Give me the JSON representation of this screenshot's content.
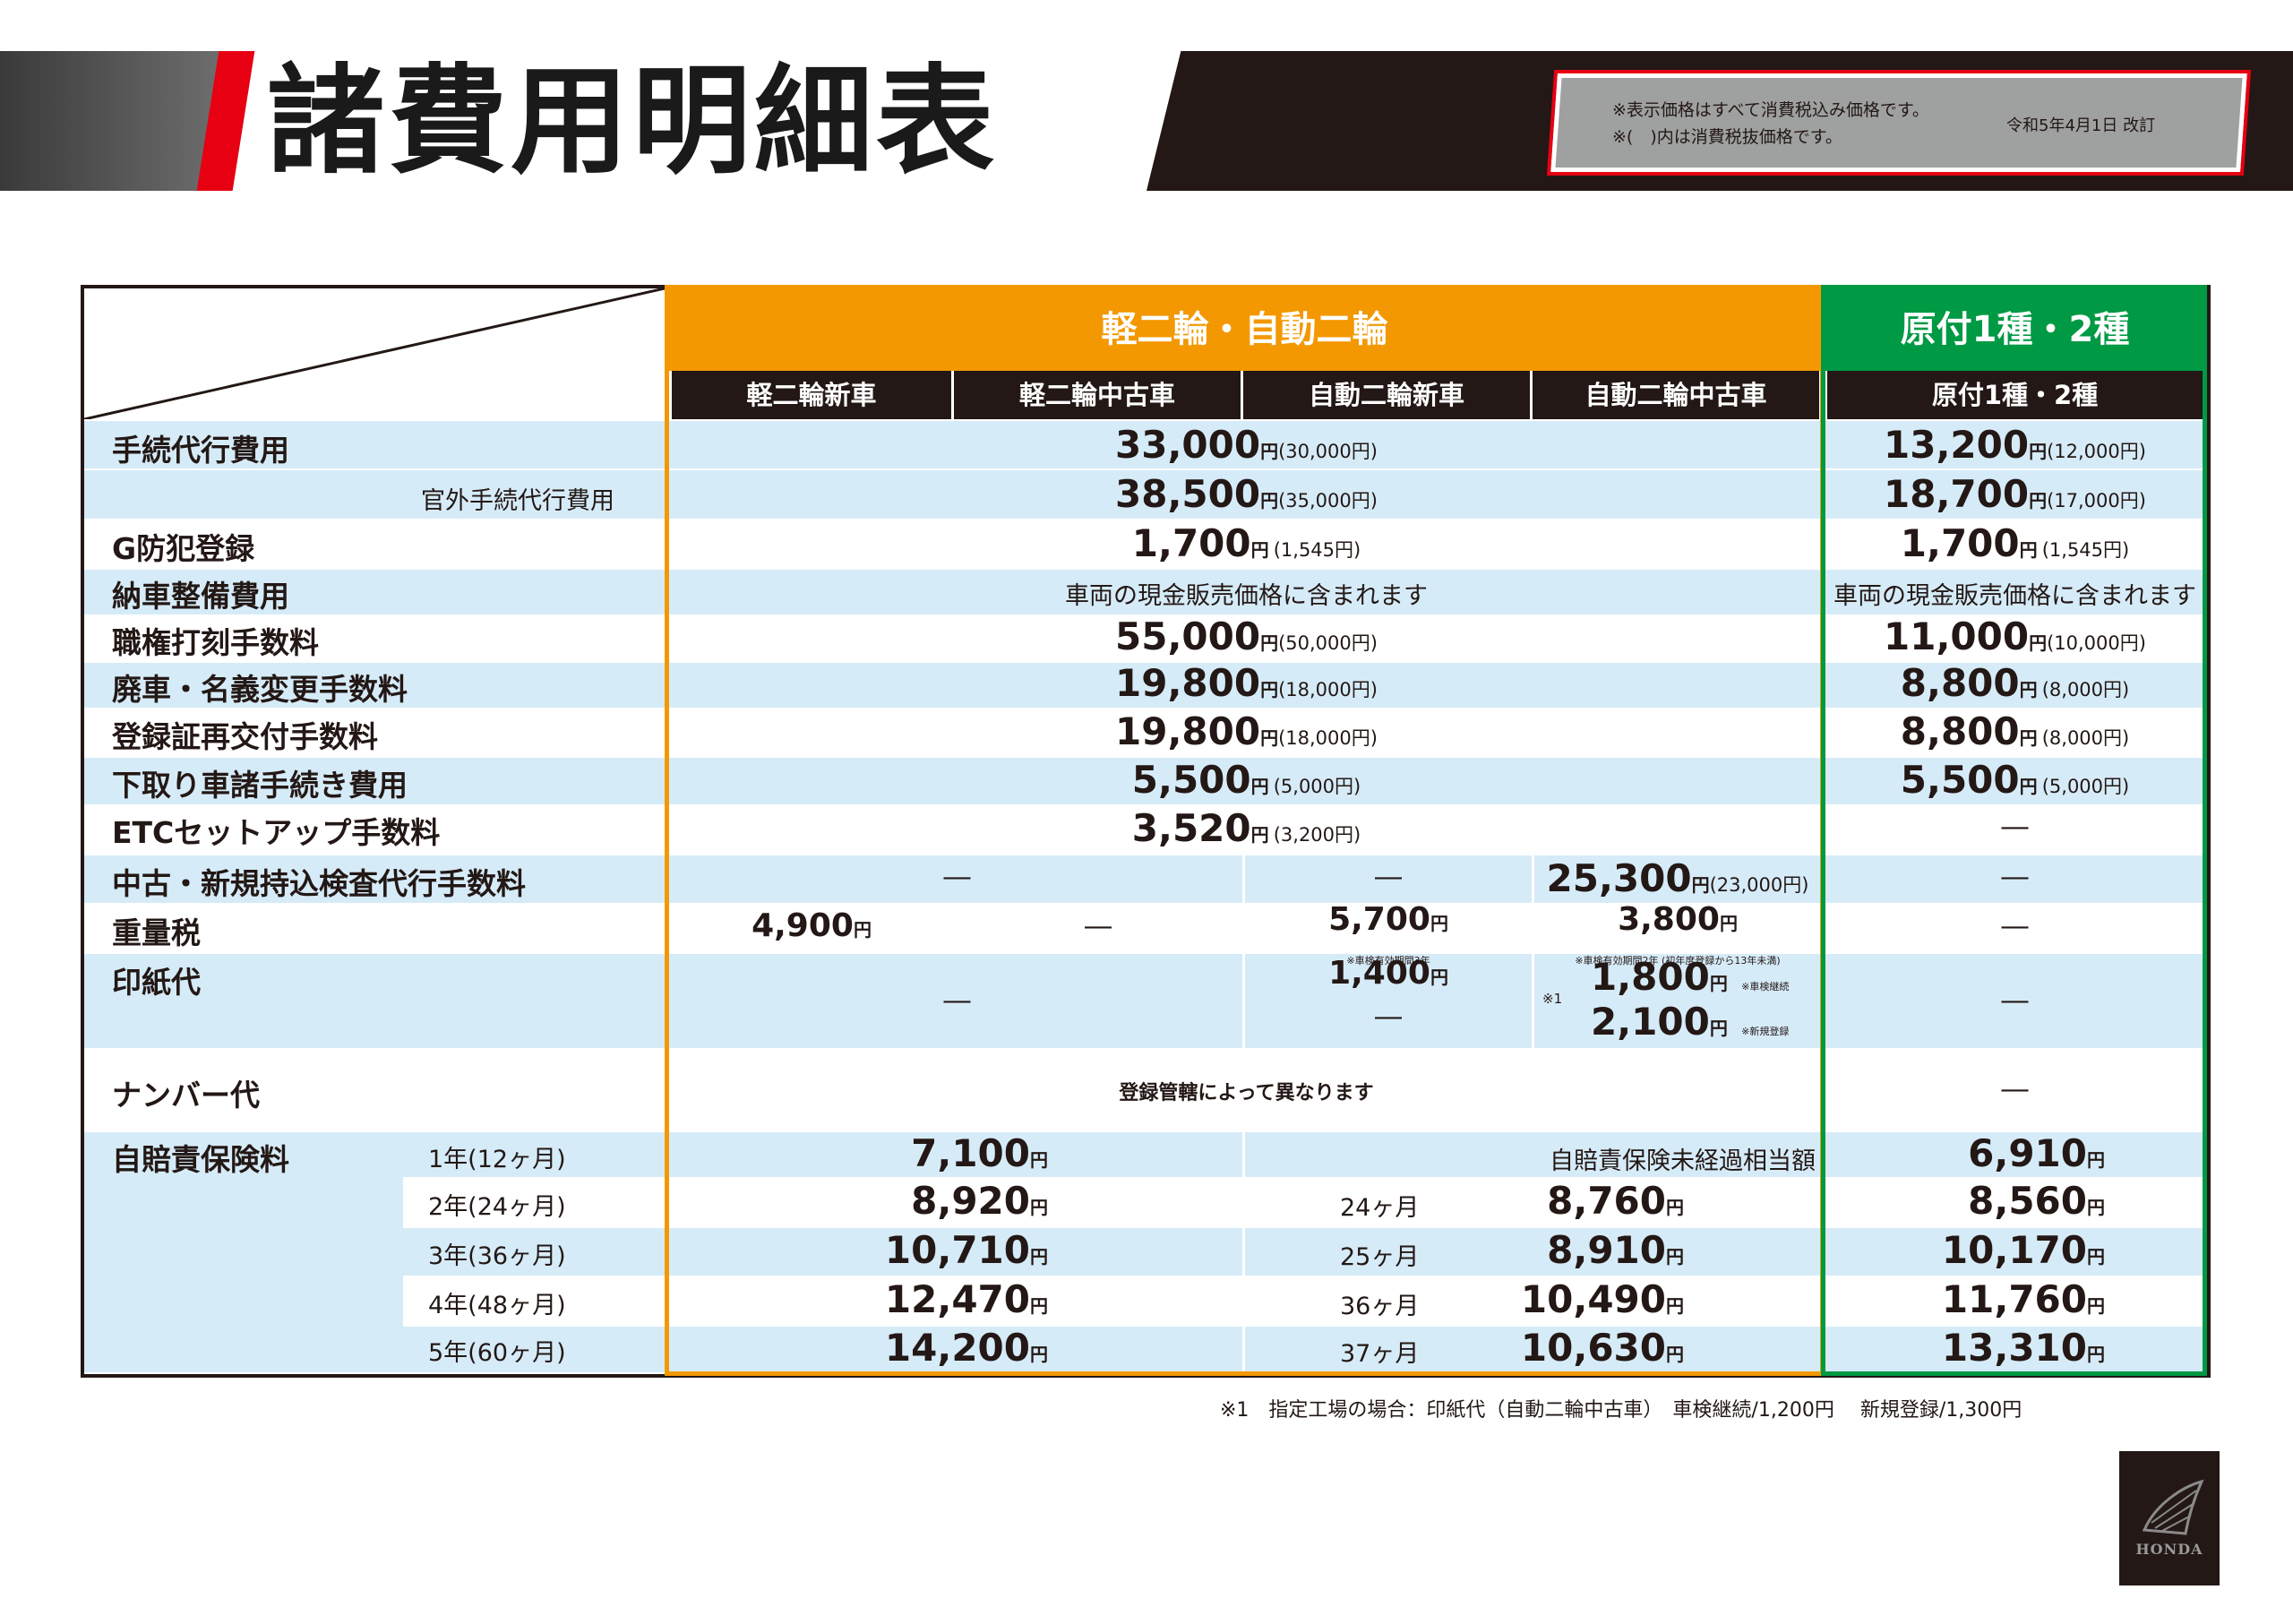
{
  "header": {
    "title": "諸費用明細表",
    "note1": "※表示価格はすべて消費税込み価格です。",
    "note2": "※(　)内は消費税抜価格です。",
    "revision": "令和5年4月1日 改訂"
  },
  "columns": {
    "group_main": "軽二輪・自動二輪",
    "group_moped": "原付1種・2種",
    "sub": [
      "軽二輪新車",
      "軽二輪中古車",
      "自動二輪新車",
      "自動二輪中古車",
      "原付1種・2種"
    ]
  },
  "unit": "円",
  "rows": {
    "r1": {
      "label": "手続代行費用",
      "main": "33,000",
      "main_ex": "(30,000円)",
      "moped": "13,200",
      "moped_ex": "(12,000円)"
    },
    "r2": {
      "label": "官外手続代行費用",
      "main": "38,500",
      "main_ex": "(35,000円)",
      "moped": "18,700",
      "moped_ex": "(17,000円)"
    },
    "r3": {
      "label": "G防犯登録",
      "main": "1,700",
      "main_ex": "(1,545円)",
      "moped": "1,700",
      "moped_ex": "(1,545円)"
    },
    "r4": {
      "label": "納車整備費用",
      "main_text": "車両の現金販売価格に含まれます",
      "moped_text": "車両の現金販売価格に含まれます"
    },
    "r5": {
      "label": "職権打刻手数料",
      "main": "55,000",
      "main_ex": "(50,000円)",
      "moped": "11,000",
      "moped_ex": "(10,000円)"
    },
    "r6": {
      "label": "廃車・名義変更手数料",
      "main": "19,800",
      "main_ex": "(18,000円)",
      "moped": "8,800",
      "moped_ex": "(8,000円)"
    },
    "r7": {
      "label": "登録証再交付手数料",
      "main": "19,800",
      "main_ex": "(18,000円)",
      "moped": "8,800",
      "moped_ex": "(8,000円)"
    },
    "r8": {
      "label": "下取り車諸手続き費用",
      "main": "5,500",
      "main_ex": "(5,000円)",
      "moped": "5,500",
      "moped_ex": "(5,000円)"
    },
    "r9": {
      "label": "ETCセットアップ手数料",
      "main": "3,520",
      "main_ex": "(3,200円)",
      "moped": "―"
    },
    "r10": {
      "label": "中古・新規持込検査代行手数料",
      "c12": "―",
      "c3": "―",
      "c4": "25,300",
      "c4_ex": "(23,000円)",
      "moped": "―"
    },
    "r11": {
      "label": "重量税",
      "c1": "4,900",
      "c2": "―",
      "c3": "5,700",
      "c3_note": "※車検有効期間3年",
      "c4": "3,800",
      "c4_note": "※車検有効期間2年 (初年度登録から13年未満)",
      "moped": "―"
    },
    "r12": {
      "label": "印紙代",
      "c12": "―",
      "c3": "1,400",
      "c3b": "―",
      "c4_mark": "※1",
      "c4a": "1,800",
      "c4a_note": "※車検継続",
      "c4b": "2,100",
      "c4b_note": "※新規登録",
      "moped": "―"
    },
    "r13": {
      "label": "ナンバー代",
      "main_text": "登録管轄によって異なります",
      "moped": "―"
    }
  },
  "insurance": {
    "label": "自賠責保険料",
    "used_header": "自賠責保険未経過相当額",
    "items": [
      {
        "term": "1年(12ヶ月)",
        "main": "7,100",
        "used_term": "",
        "used": "",
        "moped": "6,910"
      },
      {
        "term": "2年(24ヶ月)",
        "main": "8,920",
        "used_term": "24ヶ月",
        "used": "8,760",
        "moped": "8,560"
      },
      {
        "term": "3年(36ヶ月)",
        "main": "10,710",
        "used_term": "25ヶ月",
        "used": "8,910",
        "moped": "10,170"
      },
      {
        "term": "4年(48ヶ月)",
        "main": "12,470",
        "used_term": "36ヶ月",
        "used": "10,490",
        "moped": "11,760"
      },
      {
        "term": "5年(60ヶ月)",
        "main": "14,200",
        "used_term": "37ヶ月",
        "used": "10,630",
        "moped": "13,310"
      }
    ]
  },
  "footnote": "※1　指定工場の場合：印紙代（自動二輪中古車）　車検継続/1,200円　 新規登録/1,300円",
  "logo": {
    "text": "HONDA",
    "icon": "honda-wing-icon"
  }
}
